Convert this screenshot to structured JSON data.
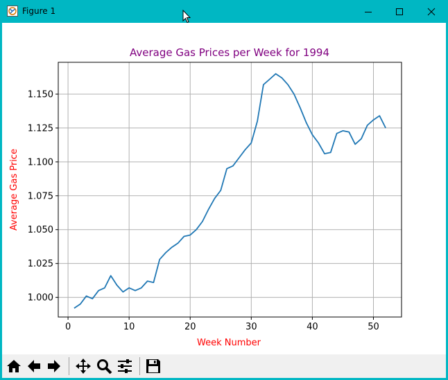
{
  "window": {
    "title": "Figure 1",
    "controls": [
      "minimize",
      "maximize",
      "close"
    ]
  },
  "toolbar": {
    "buttons": [
      {
        "name": "home-button",
        "icon": "home-icon"
      },
      {
        "name": "back-button",
        "icon": "arrow-left-icon"
      },
      {
        "name": "forward-button",
        "icon": "arrow-right-icon"
      },
      {
        "name": "pan-button",
        "icon": "move-icon"
      },
      {
        "name": "zoom-button",
        "icon": "magnifier-icon"
      },
      {
        "name": "subplots-button",
        "icon": "sliders-icon"
      },
      {
        "name": "save-button",
        "icon": "floppy-disk-icon"
      }
    ]
  },
  "colors": {
    "titlebar": "#00b7c3",
    "title_text": "#800080",
    "axis_label_text": "#ff0000",
    "line": "#1f77b4",
    "grid": "#b0b0b0"
  },
  "chart_data": {
    "type": "line",
    "title": "Average Gas Prices per Week for 1994",
    "xlabel": "Week Number",
    "ylabel": "Average Gas Price",
    "xlim": [
      -1.6,
      54.6
    ],
    "ylim": [
      0.9855,
      1.1735
    ],
    "xticks": [
      0,
      10,
      20,
      30,
      40,
      50
    ],
    "yticks": [
      1.0,
      1.025,
      1.05,
      1.075,
      1.1,
      1.125,
      1.15
    ],
    "ytick_labels": [
      "1.000",
      "1.025",
      "1.050",
      "1.075",
      "1.100",
      "1.125",
      "1.150"
    ],
    "grid": true,
    "series": [
      {
        "x": [
          1,
          2,
          3,
          4,
          5,
          6,
          7,
          8,
          9,
          10,
          11,
          12,
          13,
          14,
          15,
          16,
          17,
          18,
          19,
          20,
          21,
          22,
          23,
          24,
          25,
          26,
          27,
          28,
          29,
          30,
          31,
          32,
          33,
          34,
          35,
          36,
          37,
          38,
          39,
          40,
          41,
          42,
          43,
          44,
          45,
          46,
          47,
          48,
          49,
          50,
          51,
          52
        ],
        "values": [
          0.992,
          0.995,
          1.001,
          0.999,
          1.005,
          1.007,
          1.016,
          1.009,
          1.004,
          1.007,
          1.005,
          1.007,
          1.012,
          1.011,
          1.028,
          1.033,
          1.037,
          1.04,
          1.045,
          1.046,
          1.05,
          1.056,
          1.065,
          1.073,
          1.079,
          1.095,
          1.097,
          1.103,
          1.109,
          1.114,
          1.13,
          1.157,
          1.161,
          1.165,
          1.162,
          1.157,
          1.15,
          1.14,
          1.129,
          1.12,
          1.114,
          1.106,
          1.107,
          1.121,
          1.123,
          1.122,
          1.113,
          1.117,
          1.127,
          1.131,
          1.134,
          1.125
        ]
      }
    ]
  }
}
